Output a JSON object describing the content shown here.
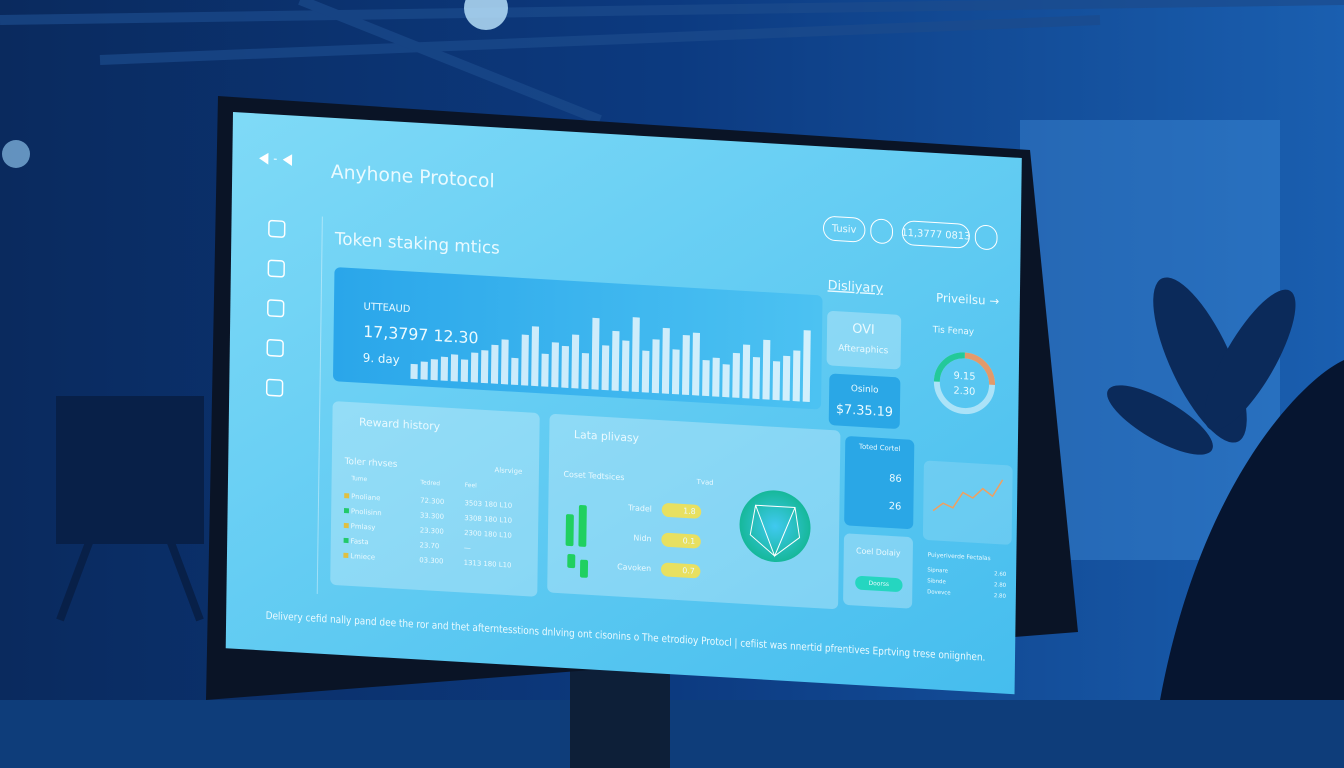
{
  "header": {
    "title": "Anyhone Protocol",
    "buttons": [
      "Tusiv",
      "11,3777 0813"
    ]
  },
  "staking": {
    "title": "Token staking mtics",
    "label": "UTTEAUD",
    "amount": "17,3797 12.30",
    "period": "9. day",
    "bars": [
      10,
      12,
      14,
      16,
      18,
      15,
      20,
      22,
      26,
      30,
      18,
      34,
      40,
      22,
      30,
      28,
      36,
      24,
      48,
      30,
      40,
      34,
      50,
      28,
      36,
      44,
      30,
      40,
      42,
      24,
      26,
      22,
      30,
      36,
      28,
      40,
      26,
      30,
      34,
      48
    ]
  },
  "tabs": [
    "Disliyary",
    "Priveilsu →"
  ],
  "overview": {
    "title": "OVI",
    "subtitle": "Afteraphics",
    "card_label": "Osinlo",
    "card_value": "$7.35.19"
  },
  "ring": {
    "title": "Tis Fenay",
    "values": [
      "9.15",
      "2.30"
    ]
  },
  "reward_history": {
    "title": "Reward history",
    "subtitle": "Toler rhvses",
    "note": "Alsrvige",
    "columns": [
      "Tume",
      "Tedred",
      "Feel"
    ],
    "rows": [
      [
        "Pnoliane",
        "72.300",
        "3503 180 L10"
      ],
      [
        "Pnolisinn",
        "33.300",
        "3308 180 L10"
      ],
      [
        "Pmlasy",
        "23.300",
        "2300 180 L10"
      ],
      [
        "Fasta",
        "23.70",
        "—"
      ],
      [
        "Lmiece",
        "03.300",
        "1313 180 L10"
      ]
    ]
  },
  "privacy": {
    "title": "Lata plivasy",
    "subtitle": "Coset Tedtsices",
    "note": "Tvad",
    "rows": [
      [
        "Tradel",
        "1.8"
      ],
      [
        "Nidn",
        "0.1"
      ],
      [
        "Cavoken",
        "0.7"
      ]
    ]
  },
  "total": {
    "title": "Toted Cortel",
    "values": [
      "86",
      "26"
    ]
  },
  "delivery": {
    "title": "Coel Dolaiy",
    "button": "Doorss"
  },
  "trend": {
    "values": [
      20,
      28,
      24,
      40,
      35,
      45,
      38,
      55
    ]
  },
  "details": {
    "title": "Puiyeriverde Fectalas",
    "rows": [
      [
        "Sipnare",
        "2.60"
      ],
      [
        "Sibnde",
        "2.80"
      ],
      [
        "Dovevce",
        "2.80"
      ]
    ]
  },
  "footer": "Delivery cefid nally pand dee the ror and thet afterntesstions dnlving ont cisonins o The etrodioy Protocl | cefiist was nnertid pfrentives Eprtving trese oniignhen."
}
